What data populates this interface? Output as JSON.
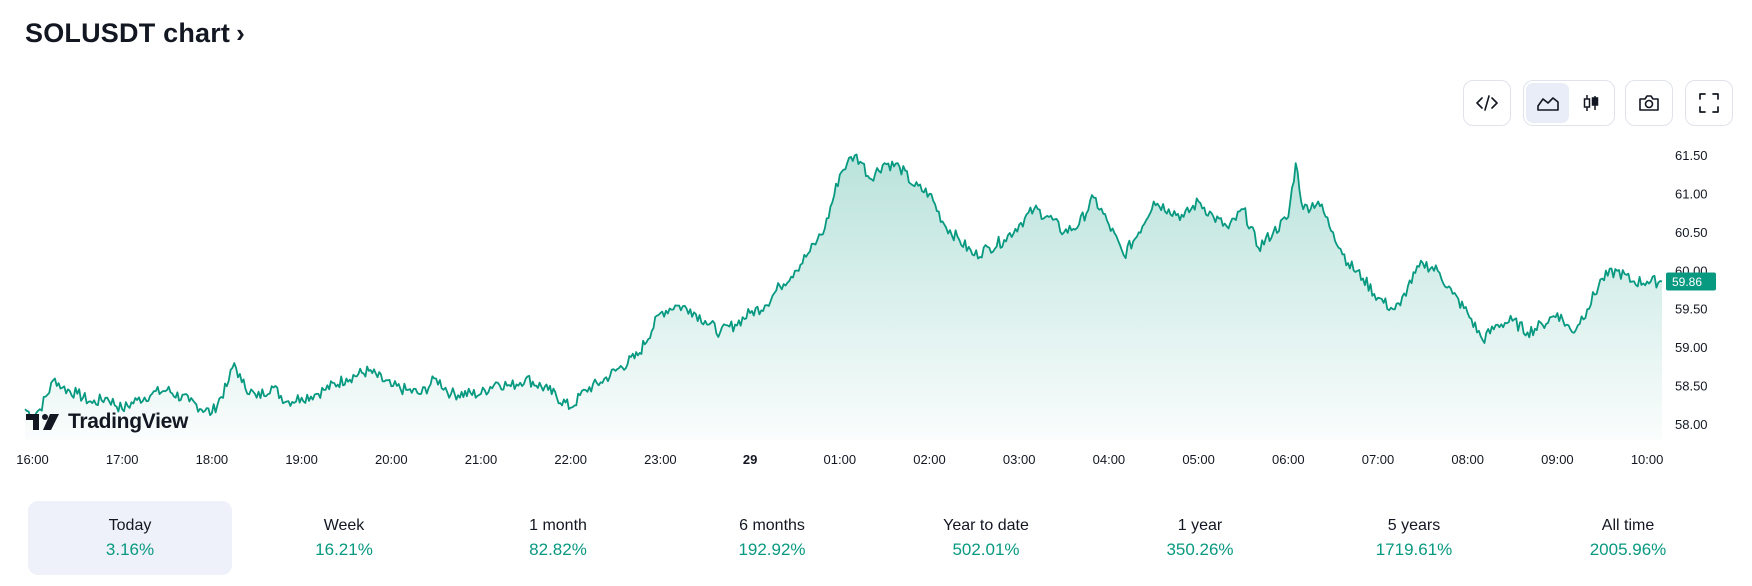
{
  "header": {
    "title": "SOLUSDT chart",
    "chevron": "›"
  },
  "toolbar": {
    "embed_icon": "code-icon",
    "area_icon": "area-chart-icon",
    "candles_icon": "candlestick-icon",
    "snapshot_icon": "camera-icon",
    "fullscreen_icon": "fullscreen-icon"
  },
  "colors": {
    "line": "#089981",
    "accent": "#089981",
    "active_bg": "#eef1f9",
    "text": "#131722"
  },
  "logo": {
    "text": "TradingView"
  },
  "chart_data": {
    "type": "area",
    "x_tick_labels": [
      "16:00",
      "17:00",
      "18:00",
      "19:00",
      "20:00",
      "21:00",
      "22:00",
      "23:00",
      "29",
      "01:00",
      "02:00",
      "03:00",
      "04:00",
      "05:00",
      "06:00",
      "07:00",
      "08:00",
      "09:00",
      "10:00"
    ],
    "x_tick_bold": "29",
    "y_ticks": [
      58.0,
      58.5,
      59.0,
      59.5,
      60.0,
      60.5,
      61.0,
      61.5
    ],
    "y_tick_labels": [
      "58.00",
      "58.50",
      "59.00",
      "59.50",
      "60.00",
      "60.50",
      "61.00",
      "61.50"
    ],
    "ylim": [
      57.8,
      61.7
    ],
    "last_price": "59.86",
    "grid": false,
    "series": [
      {
        "x": [
          "15:55",
          "16:00",
          "16:05",
          "16:15",
          "16:20",
          "16:30",
          "16:40",
          "16:50",
          "17:00",
          "17:10",
          "17:20",
          "17:30",
          "17:45",
          "18:00",
          "18:10",
          "18:15",
          "18:20",
          "18:30",
          "18:40",
          "18:50",
          "19:00",
          "19:10",
          "19:15",
          "19:30",
          "19:45",
          "20:00",
          "20:10",
          "20:20",
          "20:30",
          "20:40",
          "21:00",
          "21:10",
          "21:20",
          "21:30",
          "21:45",
          "22:00",
          "22:10",
          "22:20",
          "22:30",
          "22:45",
          "23:00",
          "23:10",
          "23:20",
          "23:30",
          "23:40",
          "23:50",
          "00:00",
          "00:10",
          "00:20",
          "00:30",
          "00:40",
          "00:45",
          "00:50",
          "01:00",
          "01:05",
          "01:10",
          "01:15",
          "01:20",
          "01:30",
          "01:40",
          "01:50",
          "02:00",
          "02:10",
          "02:20",
          "02:30",
          "02:40",
          "02:50",
          "03:00",
          "03:10",
          "03:20",
          "03:30",
          "03:40",
          "03:50",
          "04:00",
          "04:10",
          "04:20",
          "04:30",
          "04:40",
          "04:50",
          "05:00",
          "05:10",
          "05:20",
          "05:30",
          "05:40",
          "05:50",
          "06:00",
          "06:05",
          "06:10",
          "06:20",
          "06:30",
          "06:40",
          "06:50",
          "07:00",
          "07:10",
          "07:15",
          "07:20",
          "07:30",
          "07:40",
          "07:50",
          "08:00",
          "08:10",
          "08:20",
          "08:30",
          "08:40",
          "08:50",
          "09:00",
          "09:10",
          "09:20",
          "09:30",
          "09:40",
          "09:50",
          "10:00",
          "10:10"
        ],
        "y": [
          58.2,
          58.12,
          58.2,
          58.6,
          58.48,
          58.4,
          58.28,
          58.35,
          58.2,
          58.32,
          58.4,
          58.45,
          58.3,
          58.15,
          58.5,
          58.8,
          58.55,
          58.35,
          58.5,
          58.3,
          58.35,
          58.4,
          58.45,
          58.6,
          58.7,
          58.5,
          58.45,
          58.4,
          58.6,
          58.4,
          58.4,
          58.55,
          58.5,
          58.6,
          58.45,
          58.22,
          58.45,
          58.55,
          58.7,
          58.9,
          59.45,
          59.55,
          59.5,
          59.35,
          59.2,
          59.3,
          59.45,
          59.55,
          59.8,
          60.0,
          60.25,
          60.4,
          60.55,
          61.25,
          61.4,
          61.5,
          61.4,
          61.2,
          61.4,
          61.35,
          61.1,
          61.0,
          60.6,
          60.4,
          60.2,
          60.3,
          60.4,
          60.6,
          60.8,
          60.7,
          60.5,
          60.6,
          60.95,
          60.6,
          60.2,
          60.5,
          60.9,
          60.8,
          60.7,
          60.9,
          60.7,
          60.55,
          60.8,
          60.3,
          60.5,
          60.7,
          61.4,
          60.8,
          60.9,
          60.5,
          60.1,
          59.9,
          59.65,
          59.5,
          59.55,
          59.8,
          60.1,
          60.0,
          59.7,
          59.45,
          59.1,
          59.3,
          59.35,
          59.2,
          59.3,
          59.45,
          59.2,
          59.5,
          59.9,
          60.0,
          59.86,
          59.86,
          59.86
        ]
      }
    ]
  },
  "periods": [
    {
      "label": "Today",
      "value": "3.16%",
      "active": true
    },
    {
      "label": "Week",
      "value": "16.21%",
      "active": false
    },
    {
      "label": "1 month",
      "value": "82.82%",
      "active": false
    },
    {
      "label": "6 months",
      "value": "192.92%",
      "active": false
    },
    {
      "label": "Year to date",
      "value": "502.01%",
      "active": false
    },
    {
      "label": "1 year",
      "value": "350.26%",
      "active": false
    },
    {
      "label": "5 years",
      "value": "1719.61%",
      "active": false
    },
    {
      "label": "All time",
      "value": "2005.96%",
      "active": false
    }
  ]
}
